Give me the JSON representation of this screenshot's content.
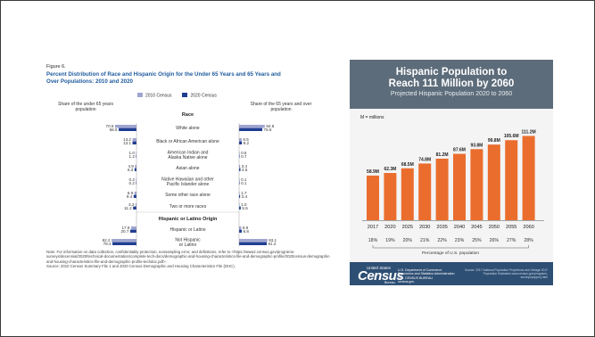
{
  "figure": {
    "number": "Figure 6.",
    "title": "Percent Distribution of Race and Hispanic Origin for the Under 65 Years and 65 Years and Over Populations: 2010 and 2020",
    "legend": [
      "2010 Census",
      "2020 Census"
    ],
    "left_header": "Share of the under 65 years population",
    "right_header": "Share of the 65 years and over population",
    "race_header": "Race",
    "hispanic_header": "Hispanic or Latino Origin",
    "note": "Note: For information on data collection, confidentiality protection, nonsampling error, and definitions, refer to <https://www2.census.gov/programs-surveys/decennial/2020/technical-documentation/complete-tech-docs/demographic-and-housing-characteristics-file-and-demographic-profile/2020census-demographic-and-housing-characteristics-file-and-demographic-profile-techdoc.pdf>.",
    "source": "Source: 2010 Census Summary File 1 and 2020 Census Demographic and Housing Characteristics File (DHC)."
  },
  "infographic": {
    "title_line1": "Hispanic Population to",
    "title_line2": "Reach 111 Million by 2060",
    "subtitle": "Projected Hispanic Population 2020 to 2060",
    "units_note": "M = millions",
    "pct_axis_label": "Percentage of U.S. population",
    "logo_small": "United States",
    "logo_big": "Census",
    "logo_bureau": "Bureau",
    "dept_lines": [
      "U.S. Department of Commerce",
      "Economics and Statistics Administration",
      "U.S. CENSUS BUREAU",
      "census.gov"
    ],
    "source_text": "Source: 2017 National Population Projections and Vintage 2017 Population Estimates www.census.gov/programs-surveys/popproj.html"
  },
  "colors": {
    "c2010": "#9fa5cf",
    "c2020": "#1f3d91",
    "orange": "#ea6d2e",
    "header": "#5d6c7a",
    "footer": "#2e4f74",
    "title_blue": "#1f5a9e"
  },
  "chart_data": [
    {
      "type": "bar",
      "orientation": "horizontal-butterfly",
      "categories": [
        "White alone",
        "Black or African American alone",
        "American Indian and Alaska Native alone",
        "Asian alone",
        "Native Hawaiian and other Pacific Islander alone",
        "Some other race alone",
        "Two or more races",
        "Hispanic or Latino",
        "Not Hispanic or Latino"
      ],
      "groups": [
        "Race",
        "Race",
        "Race",
        "Race",
        "Race",
        "Race",
        "Race",
        "Hispanic or Latino Origin",
        "Hispanic or Latino Origin"
      ],
      "series": [
        {
          "name": "2010 Census",
          "panel": "Share of the under 65 years population",
          "values": [
            70.6,
            13.2,
            1.0,
            4.9,
            0.2,
            6.9,
            3.2,
            17.8,
            82.2
          ]
        },
        {
          "name": "2020 Census",
          "panel": "Share of the under 65 years population",
          "values": [
            58.6,
            13.1,
            1.2,
            6.3,
            0.2,
            9.4,
            11.2,
            20.7,
            79.3
          ]
        },
        {
          "name": "2010 Census",
          "panel": "Share of the 65 years and over population",
          "values": [
            84.8,
            8.5,
            0.5,
            3.4,
            0.1,
            1.7,
            1.0,
            6.9,
            93.1
          ]
        },
        {
          "name": "2020 Census",
          "panel": "Share of the 65 years and over population",
          "values": [
            76.6,
            9.2,
            0.7,
            4.5,
            0.1,
            3.4,
            5.5,
            8.8,
            91.2
          ]
        }
      ],
      "value_labels": {
        "under65_2010": [
          "70.6",
          "13.2",
          "1.0",
          "4.9",
          "0.2",
          "6.9",
          "3.2",
          "17.8",
          "82.2"
        ],
        "under65_2020": [
          "58.6",
          "13.1",
          "1.2",
          "6.3",
          "0.2",
          "9.4",
          "11.2",
          "20.7",
          "79.3"
        ],
        "over65_2010": [
          "84.8",
          "8.5",
          "0.5",
          "3.4",
          "0.1",
          "1.7",
          "1.0",
          "6.9",
          "93.1"
        ],
        "over65_2020": [
          "76.6",
          "9.2",
          "0.7",
          "4.5",
          "0.1",
          "3.4",
          "5.5",
          "8.8",
          "91.2"
        ]
      },
      "xlim": [
        0,
        100
      ]
    },
    {
      "type": "bar",
      "categories": [
        "2017",
        "2020",
        "2025",
        "2030",
        "2035",
        "2040",
        "2045",
        "2050",
        "2055",
        "2060"
      ],
      "values": [
        58.9,
        62.3,
        68.5,
        74.8,
        81.2,
        87.6,
        93.8,
        99.8,
        105.6,
        111.2
      ],
      "value_labels": [
        "58.9M",
        "62.3M",
        "68.5M",
        "74.8M",
        "81.2M",
        "87.6M",
        "93.8M",
        "99.8M",
        "105.6M",
        "111.2M"
      ],
      "pct_of_us": [
        "18%",
        "19%",
        "20%",
        "21%",
        "22%",
        "23%",
        "25%",
        "26%",
        "27%",
        "28%"
      ],
      "ylim": [
        0,
        120
      ]
    }
  ]
}
